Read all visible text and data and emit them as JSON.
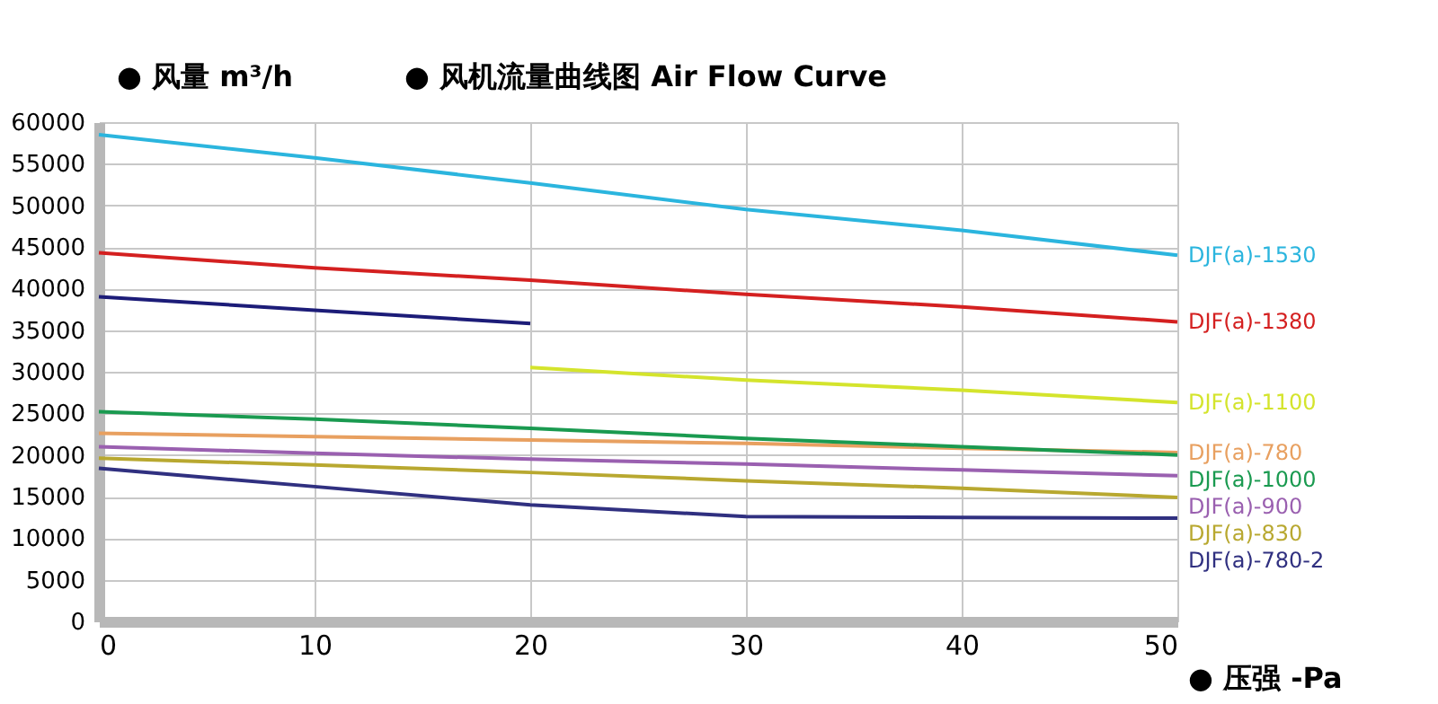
{
  "chart_data": {
    "type": "line",
    "title": "● 风机流量曲线图 Air Flow Curve",
    "ylabel": "● 风量 m³/h",
    "xlabel": "● 压强 -Pa",
    "x": [
      0,
      10,
      20,
      30,
      40,
      50
    ],
    "xlim": [
      0,
      50
    ],
    "xticks": [
      0,
      10,
      20,
      30,
      40,
      50
    ],
    "ylim": [
      0,
      60000
    ],
    "yticks": [
      0,
      5000,
      10000,
      15000,
      20000,
      25000,
      30000,
      35000,
      40000,
      45000,
      50000,
      55000,
      60000
    ],
    "grid": true,
    "legend": false,
    "marker": "none",
    "line_style": "solid",
    "series": [
      {
        "name": "DJF(a)-1530",
        "color": "#2bb5de",
        "values": [
          58500,
          55700,
          52700,
          49500,
          47000,
          44000
        ]
      },
      {
        "name": "DJF(a)-1380",
        "color": "#d42020",
        "values": [
          44300,
          42500,
          41000,
          39300,
          37800,
          36000
        ]
      },
      {
        "color": "#1c1c78",
        "values": [
          39000,
          37400,
          35800,
          null,
          null,
          null
        ]
      },
      {
        "name": "DJF(a)-1100",
        "color": "#d4e42c",
        "values": [
          null,
          null,
          30500,
          29000,
          27800,
          26300
        ]
      },
      {
        "name": "DJF(a)-780",
        "color": "#e8a060",
        "values": [
          22600,
          22200,
          21800,
          21400,
          20800,
          20300
        ]
      },
      {
        "name": "DJF(a)-1000",
        "color": "#1a9a50",
        "values": [
          25200,
          24300,
          23200,
          22000,
          21000,
          20000
        ]
      },
      {
        "name": "DJF(a)-900",
        "color": "#9a60b0",
        "values": [
          21000,
          20200,
          19500,
          18900,
          18200,
          17500
        ]
      },
      {
        "name": "DJF(a)-830",
        "color": "#b8a830",
        "values": [
          19600,
          18800,
          17900,
          16900,
          16000,
          14900
        ]
      },
      {
        "name": "DJF(a)-780-2",
        "color": "#303080",
        "values": [
          18400,
          16200,
          14000,
          12600,
          12500,
          12400
        ]
      }
    ]
  }
}
